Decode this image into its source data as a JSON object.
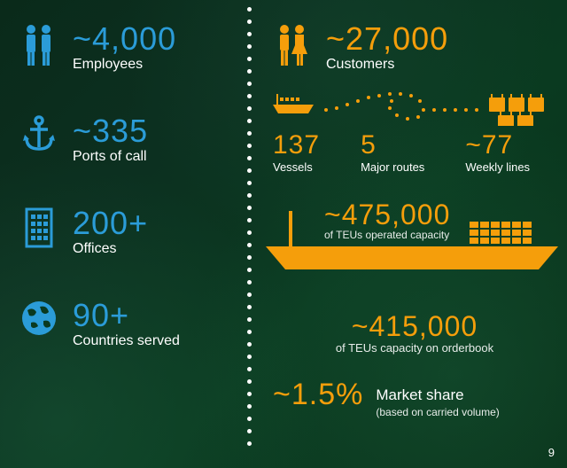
{
  "colors": {
    "blue": "#2b9cd8",
    "orange": "#f59e0b",
    "text": "#ffffff",
    "bg_start": "#0a2a1a",
    "bg_end": "#083018",
    "dot": "#ffffff"
  },
  "typography": {
    "number_fontsize": 36,
    "label_fontsize": 16,
    "small_label_fontsize": 13,
    "sub_fontsize": 12,
    "font_family": "Segoe UI"
  },
  "divider": {
    "dot_count": 36,
    "dot_size": 5,
    "gap": 9
  },
  "left": {
    "employees": {
      "value": "~4,000",
      "label": "Employees",
      "icon": "people-icon"
    },
    "ports": {
      "value": "~335",
      "label": "Ports of call",
      "icon": "anchor-icon"
    },
    "offices": {
      "value": "200+",
      "label": "Offices",
      "icon": "building-icon"
    },
    "countries": {
      "value": "90+",
      "label": "Countries served",
      "icon": "globe-icon"
    }
  },
  "right": {
    "customers": {
      "value": "~27,000",
      "label": "Customers",
      "icon": "couple-icon"
    },
    "triple": {
      "vessels": {
        "value": "137",
        "label": "Vessels",
        "icon": "ship-small-icon"
      },
      "routes": {
        "value": "5",
        "label": "Major routes",
        "icon": "route-dots-icon"
      },
      "weekly_lines": {
        "value": "~77",
        "label": "Weekly lines",
        "icon": "calendar-grid-icon"
      }
    },
    "teu_operated": {
      "value": "~475,000",
      "sub": "of TEUs operated capacity",
      "icon": "ship-large-icon"
    },
    "teu_orderbook": {
      "value": "~415,000",
      "sub": "of TEUs capacity on orderbook"
    },
    "market_share": {
      "value": "~1.5%",
      "label": "Market share",
      "sub": "(based on carried volume)"
    }
  },
  "page_number": "9"
}
